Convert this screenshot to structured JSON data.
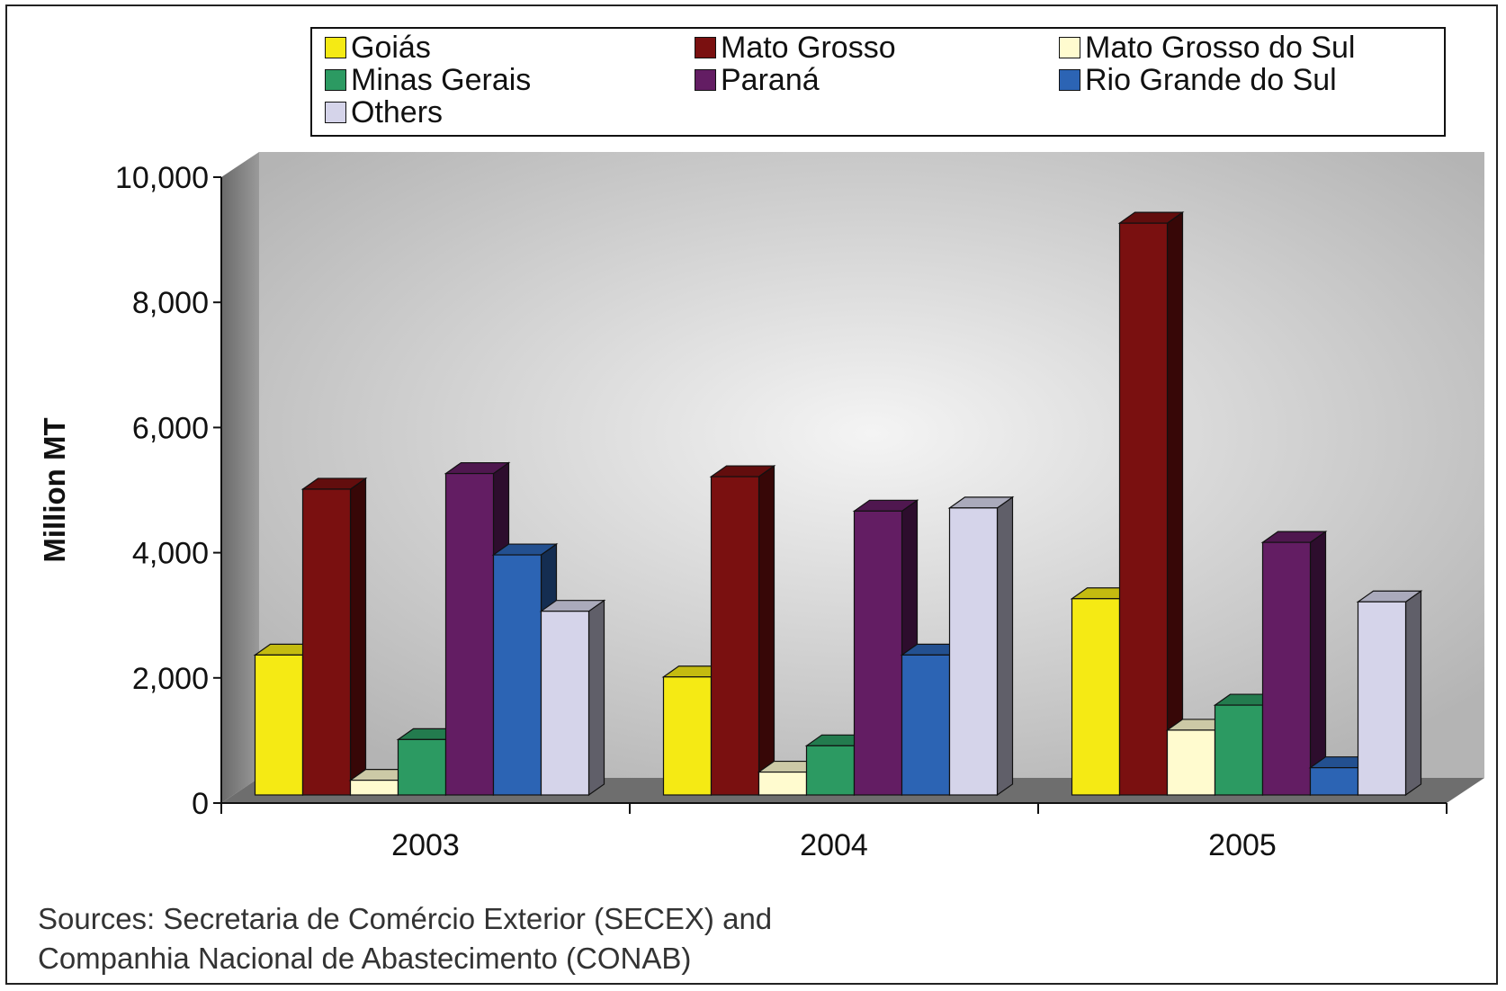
{
  "chart_data": {
    "type": "bar",
    "categories": [
      "2003",
      "2004",
      "2005"
    ],
    "ylabel": "Million MT",
    "xlabel": "",
    "ylim": [
      0,
      10000
    ],
    "yticks": [
      0,
      2000,
      4000,
      6000,
      8000,
      10000
    ],
    "ytick_labels": [
      "0",
      "2,000",
      "4,000",
      "6,000",
      "8,000",
      "10,000"
    ],
    "legend_position": "top",
    "grid": false,
    "series": [
      {
        "name": "Goiás",
        "color": "#f5ea14",
        "values": [
          2250,
          1900,
          3150
        ]
      },
      {
        "name": "Mato Grosso",
        "color": "#7a1010",
        "values": [
          4900,
          5100,
          9150
        ]
      },
      {
        "name": "Mato Grosso do Sul",
        "color": "#fffbcf",
        "values": [
          250,
          380,
          1050
        ]
      },
      {
        "name": "Minas Gerais",
        "color": "#2c9a62",
        "values": [
          900,
          800,
          1450
        ]
      },
      {
        "name": "Paraná",
        "color": "#631d63",
        "values": [
          5150,
          4550,
          4050
        ]
      },
      {
        "name": "Rio Grande do Sul",
        "color": "#2c64b4",
        "values": [
          3850,
          2250,
          450
        ]
      },
      {
        "name": "Others",
        "color": "#d5d4ea",
        "values": [
          2950,
          4600,
          3100
        ]
      }
    ]
  },
  "footer": {
    "source_line1": "Sources: Secretaria de Comércio Exterior (SECEX) and",
    "source_line2": "Companhia Nacional de Abastecimento (CONAB)"
  }
}
